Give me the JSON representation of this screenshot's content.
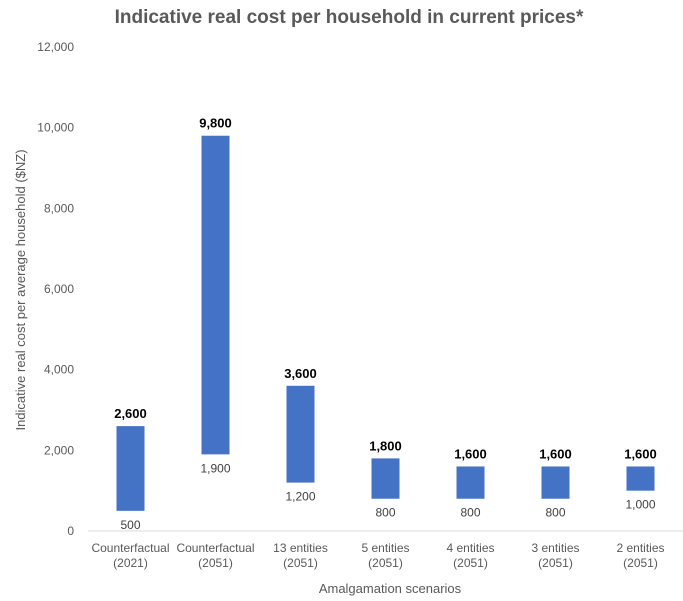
{
  "chart_data": {
    "type": "bar",
    "subtype": "floating-range",
    "title": "Indicative real cost per household in current prices*",
    "xlabel": "Amalgamation scenarios",
    "ylabel": "Indicative real cost per average household ($NZ)",
    "ylim": [
      0,
      12000
    ],
    "yticks": [
      "0",
      "2,000",
      "4,000",
      "6,000",
      "8,000",
      "10,000",
      "12,000"
    ],
    "grid": false,
    "bar_color": "#4472C4",
    "categories": [
      [
        "Counterfactual",
        "(2021)"
      ],
      [
        "Counterfactual",
        "(2051)"
      ],
      [
        "13 entities",
        "(2051)"
      ],
      [
        "5 entities",
        "(2051)"
      ],
      [
        "4 entities",
        "(2051)"
      ],
      [
        "3 entities",
        "(2051)"
      ],
      [
        "2 entities",
        "(2051)"
      ]
    ],
    "low": [
      500,
      1900,
      1200,
      800,
      800,
      800,
      1000
    ],
    "high": [
      2600,
      9800,
      3600,
      1800,
      1600,
      1600,
      1600
    ],
    "low_labels": [
      "500",
      "1,900",
      "1,200",
      "800",
      "800",
      "800",
      "1,000"
    ],
    "high_labels": [
      "2,600",
      "9,800",
      "3,600",
      "1,800",
      "1,600",
      "1,600",
      "1,600"
    ]
  }
}
